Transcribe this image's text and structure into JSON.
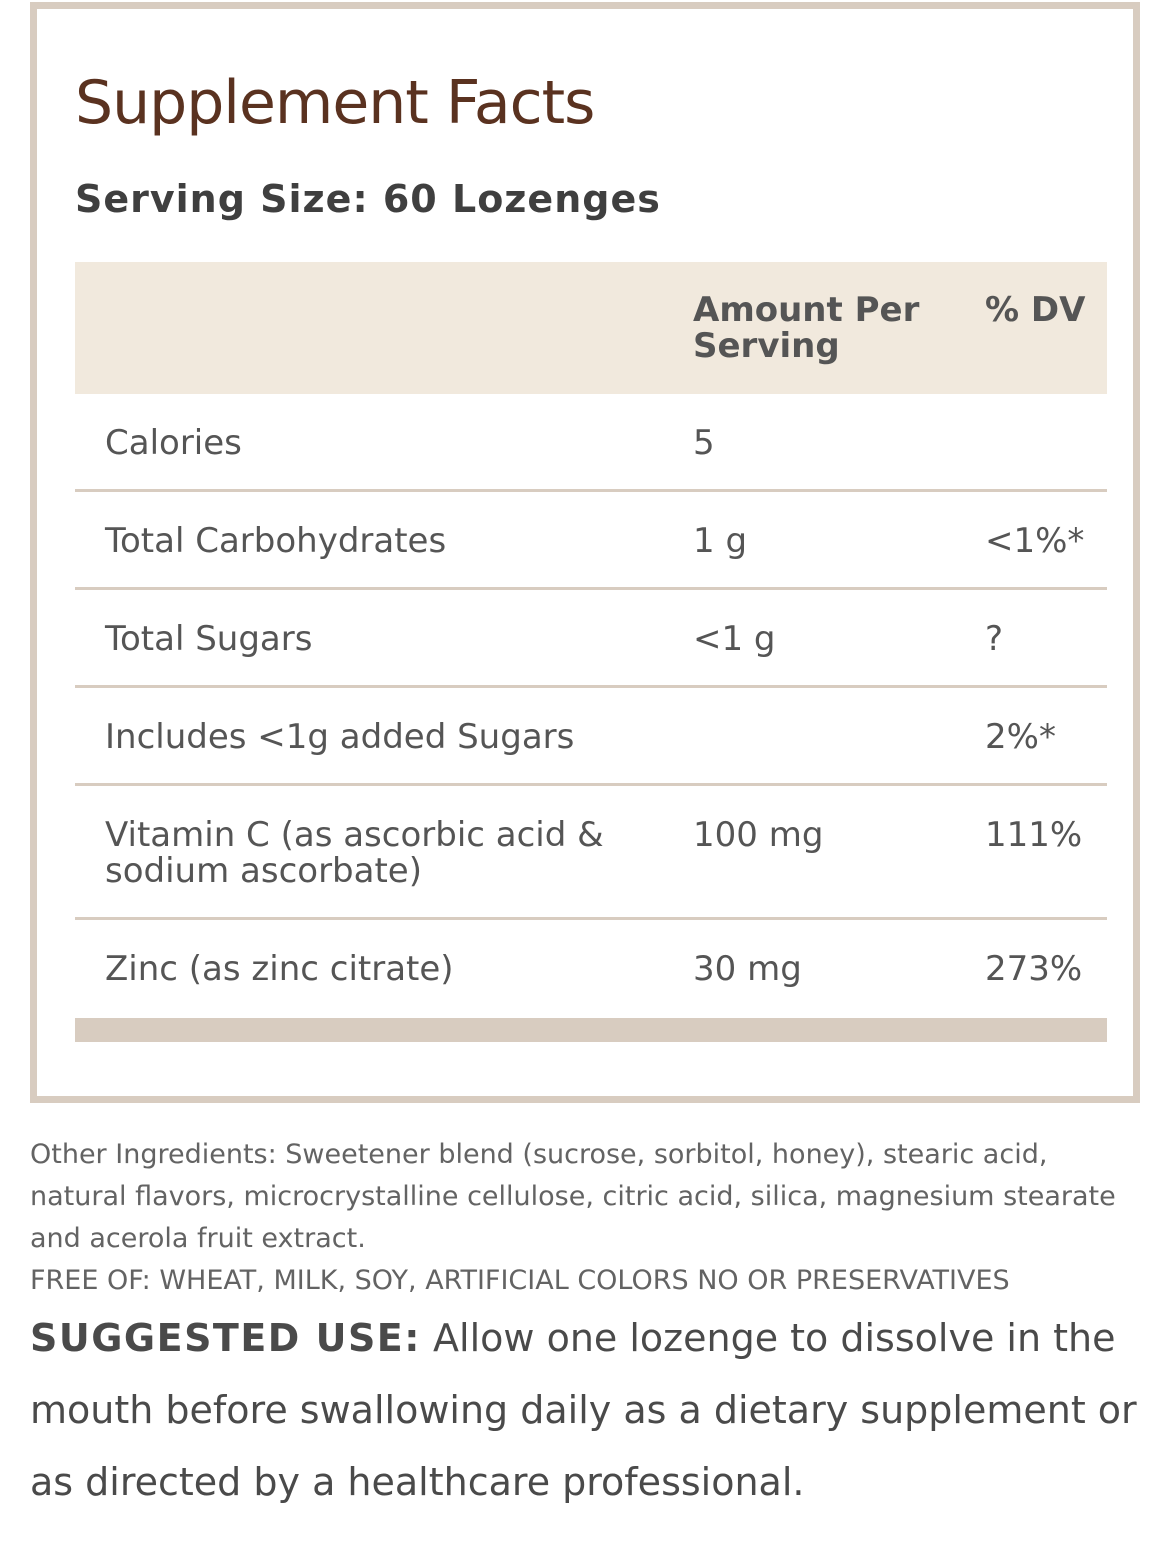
{
  "facts": {
    "title": "Supplement Facts",
    "serving_size": "Serving Size: 60 Lozenges",
    "header": {
      "amount": "Amount Per Serving",
      "dv": "% DV"
    },
    "rows": [
      {
        "name": "Calories",
        "amount": "5",
        "dv": ""
      },
      {
        "name": "Total Carbohydrates",
        "amount": "1 g",
        "dv": "<1%*"
      },
      {
        "name": "Total Sugars",
        "amount": "<1 g",
        "dv": "?"
      },
      {
        "name": "Includes <1g added Sugars",
        "amount": "",
        "dv": "2%*"
      },
      {
        "name": "Vitamin C (as ascorbic acid & sodium ascorbate)",
        "amount": "100 mg",
        "dv": "111%"
      },
      {
        "name": "Zinc (as zinc citrate)",
        "amount": "30 mg",
        "dv": "273%"
      }
    ]
  },
  "other_ingredients": "Other Ingredients: Sweetener blend (sucrose, sorbitol, honey), stearic acid, natural flavors, microcrystalline cellulose, citric acid, silica, magnesium stearate and acerola fruit extract.",
  "free_of": "FREE OF: WHEAT, MILK, SOY, ARTIFICIAL COLORS NO OR PRESERVATIVES",
  "suggested_use": {
    "label": "SUGGESTED USE:",
    "text": " Allow one lozenge to dissolve in the mouth before swallowing daily as a dietary supplement or as directed by a healthcare professional."
  },
  "colors": {
    "title": "#5a3220",
    "border": "#d8ccc0",
    "header_bg": "#f1e9dd",
    "text": "#555555"
  }
}
